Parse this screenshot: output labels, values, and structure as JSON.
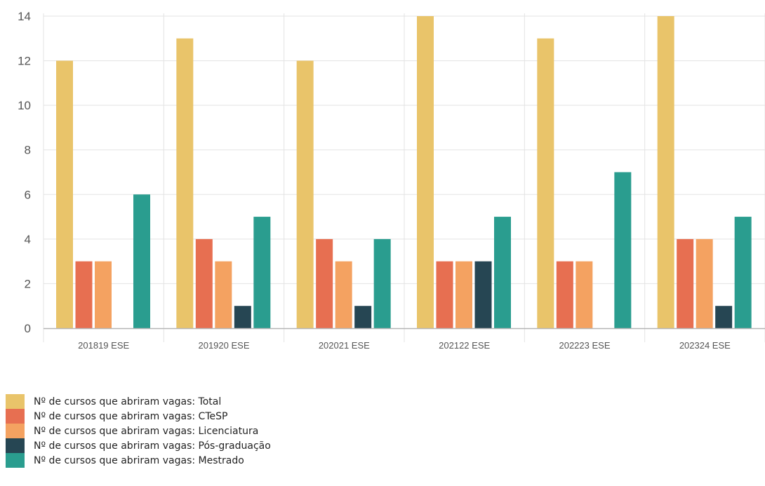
{
  "chart_data": {
    "type": "bar",
    "categories": [
      "201819 ESE",
      "201920 ESE",
      "202021 ESE",
      "202122 ESE",
      "202223 ESE",
      "202324 ESE"
    ],
    "series": [
      {
        "name": "Nº de cursos que abriram vagas: Total",
        "color": "#e9c46a",
        "values": [
          12,
          13,
          12,
          14,
          13,
          14
        ]
      },
      {
        "name": "Nº de cursos que abriram vagas: CTeSP",
        "color": "#e76f51",
        "values": [
          3,
          4,
          4,
          3,
          3,
          4
        ]
      },
      {
        "name": "Nº de cursos que abriram vagas: Licenciatura",
        "color": "#f4a261",
        "values": [
          3,
          3,
          3,
          3,
          3,
          4
        ]
      },
      {
        "name": "Nº de cursos que abriram vagas: Pós-graduação",
        "color": "#264653",
        "values": [
          0,
          1,
          1,
          3,
          0,
          1
        ]
      },
      {
        "name": "Nº de cursos que abriram vagas: Mestrado",
        "color": "#2a9d8f",
        "values": [
          6,
          5,
          4,
          5,
          7,
          5
        ]
      }
    ],
    "yticks": [
      0,
      2,
      4,
      6,
      8,
      10,
      12,
      14
    ],
    "ylim": [
      0,
      14
    ],
    "grid": true,
    "legend": "bottom-left"
  }
}
